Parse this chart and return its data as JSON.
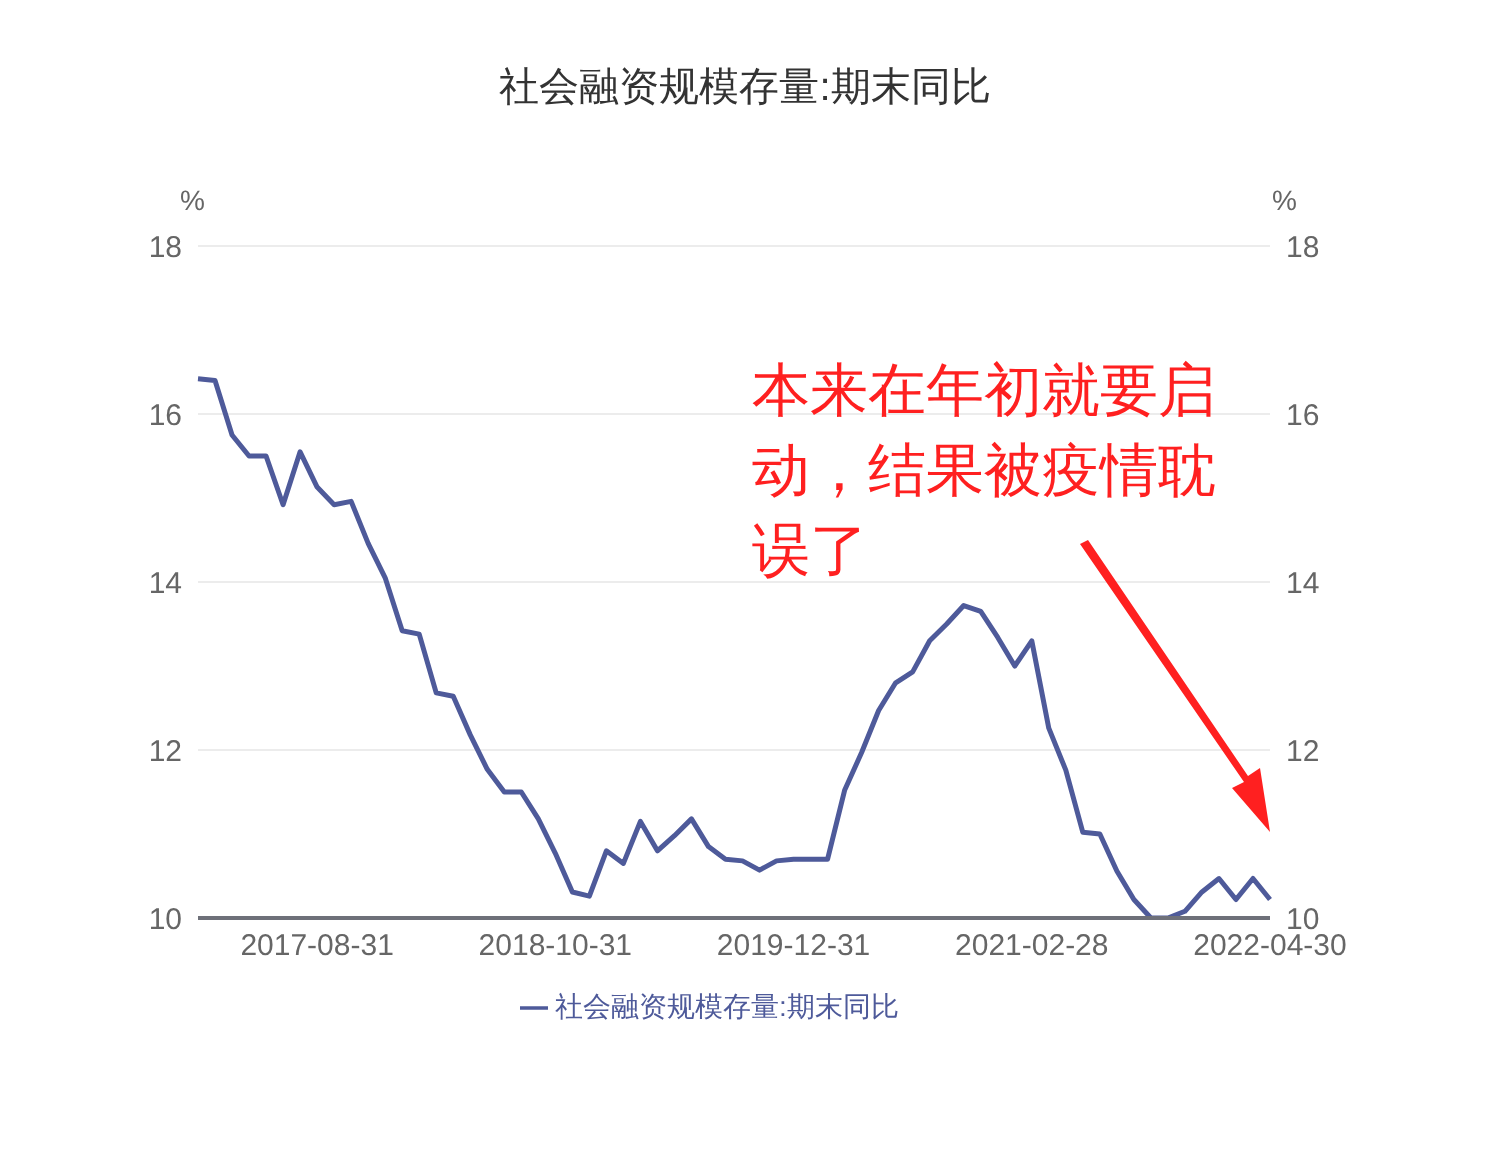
{
  "chart_data": {
    "type": "line",
    "title": "社会融资规模存量:期末同比",
    "ylabel": "%",
    "y2label": "%",
    "annotations": [
      "本来在年初就要启动，结果被疫情耽误了"
    ],
    "categories": [
      null,
      null,
      null,
      null,
      null,
      null,
      null,
      "2017-08-31",
      null,
      null,
      null,
      null,
      null,
      null,
      null,
      null,
      null,
      null,
      null,
      null,
      null,
      "2018-10-31",
      null,
      null,
      null,
      null,
      null,
      null,
      null,
      null,
      null,
      null,
      null,
      null,
      null,
      "2019-12-31",
      null,
      null,
      null,
      null,
      null,
      null,
      null,
      null,
      null,
      null,
      null,
      null,
      null,
      "2021-02-28",
      null,
      null,
      null,
      null,
      null,
      null,
      null,
      null,
      null,
      null,
      null,
      null,
      null,
      "2022-04-30"
    ],
    "series": [
      {
        "name": "社会融资规模存量:期末同比",
        "color": "#4e5a9a",
        "values": [
          16.42,
          16.4,
          15.75,
          15.5,
          15.5,
          14.92,
          15.55,
          15.13,
          14.92,
          14.96,
          14.46,
          14.05,
          13.42,
          13.38,
          12.68,
          12.64,
          12.18,
          11.77,
          11.5,
          11.5,
          11.18,
          10.77,
          10.31,
          10.26,
          10.8,
          10.65,
          11.15,
          10.8,
          10.98,
          11.18,
          10.85,
          10.7,
          10.68,
          10.57,
          10.68,
          10.7,
          10.7,
          10.7,
          11.52,
          11.97,
          12.47,
          12.8,
          12.93,
          13.3,
          13.5,
          13.72,
          13.65,
          13.34,
          13.0,
          13.3,
          12.26,
          11.76,
          11.02,
          11.0,
          10.56,
          10.22,
          10.0,
          10.0,
          10.08,
          10.31,
          10.47,
          10.22,
          10.47,
          10.22
        ]
      }
    ],
    "ylim": [
      10,
      18
    ],
    "yticks": [
      10,
      12,
      14,
      16,
      18
    ],
    "y2lim": [
      10,
      18
    ],
    "y2ticks": [
      10,
      12,
      14,
      16,
      18
    ],
    "grid": "y",
    "legend": "bottom",
    "line_style": "solid"
  }
}
